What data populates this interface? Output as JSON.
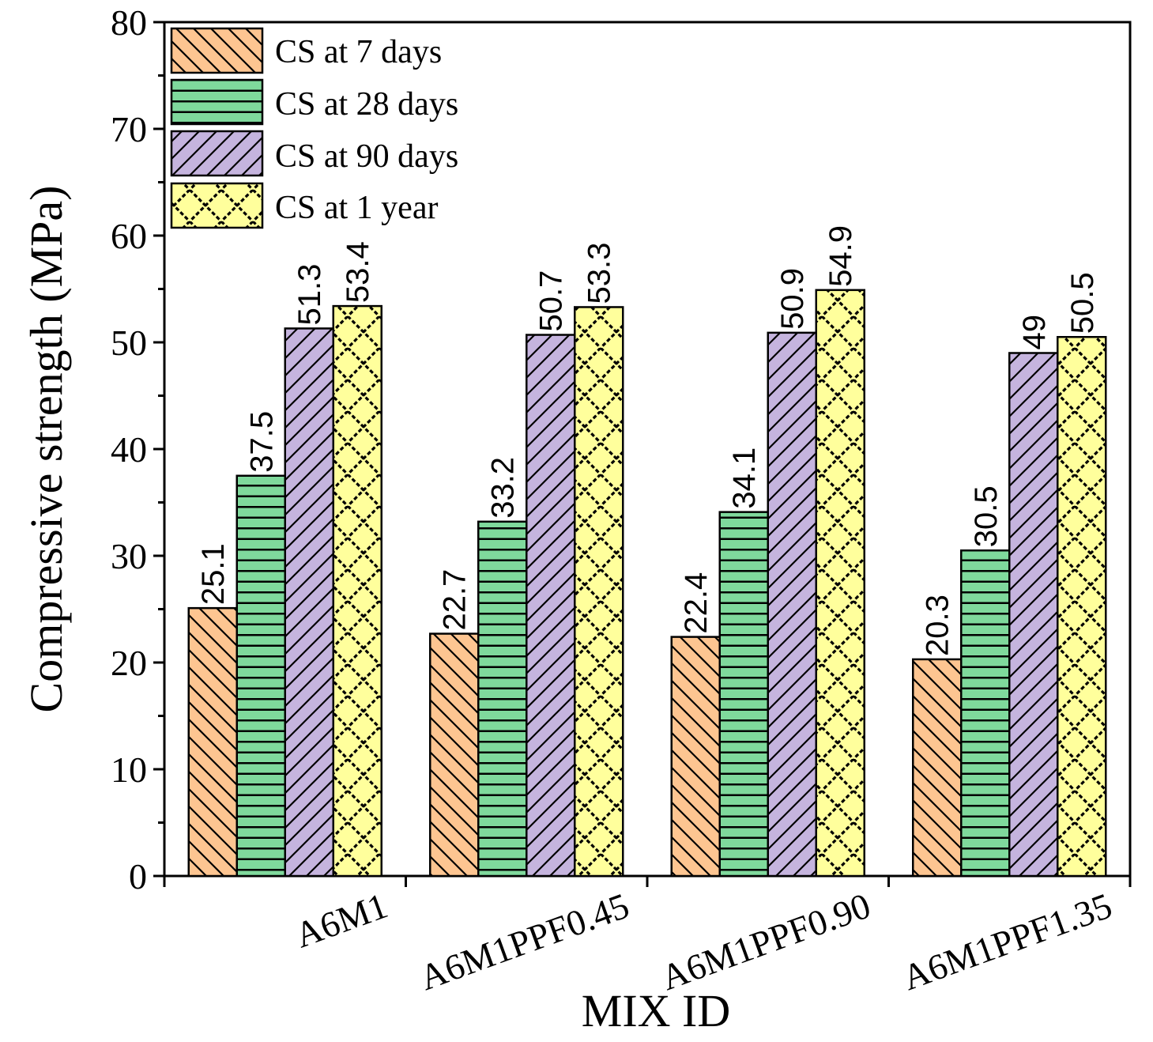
{
  "chart_data": {
    "type": "bar",
    "title": "",
    "xlabel": "MIX ID",
    "ylabel": "Compressive strength (MPa)",
    "ylim": [
      0,
      80
    ],
    "yticks": [
      0,
      10,
      20,
      30,
      40,
      50,
      60,
      70,
      80
    ],
    "categories": [
      "A6M1",
      "A6M1PPF0.45",
      "A6M1PPF0.90",
      "A6M1PPF1.35"
    ],
    "legend_position": "top-left",
    "grid": false,
    "series": [
      {
        "name": "CS at 7 days",
        "values": [
          25.1,
          22.7,
          22.4,
          20.3
        ],
        "labels": [
          "25.1",
          "22.7",
          "22.4",
          "20.3"
        ],
        "color": "#fdc591",
        "pattern": "hatch-backslash"
      },
      {
        "name": "CS at 28 days",
        "values": [
          37.5,
          33.2,
          34.1,
          30.5
        ],
        "labels": [
          "37.5",
          "33.2",
          "34.1",
          "30.5"
        ],
        "color": "#7fd99c",
        "pattern": "hatch-horizontal"
      },
      {
        "name": "CS at 90 days",
        "values": [
          51.3,
          50.7,
          50.9,
          49
        ],
        "labels": [
          "51.3",
          "50.7",
          "50.9",
          "49"
        ],
        "color": "#c5b4de",
        "pattern": "hatch-slash"
      },
      {
        "name": "CS at 1 year",
        "values": [
          53.4,
          53.3,
          54.9,
          50.5
        ],
        "labels": [
          "53.4",
          "53.3",
          "54.9",
          "50.5"
        ],
        "color": "#ffff9c",
        "pattern": "hatch-cross"
      }
    ]
  }
}
